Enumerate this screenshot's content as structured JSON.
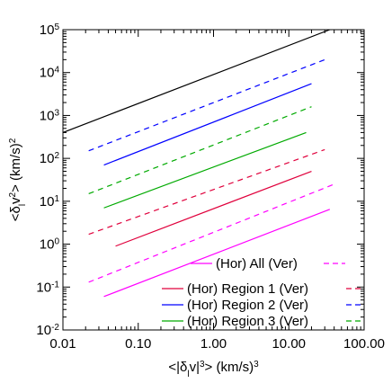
{
  "chart_data": {
    "type": "line",
    "x_scale": "log",
    "y_scale": "log",
    "xlim": [
      0.01,
      100
    ],
    "ylim": [
      0.01,
      100000
    ],
    "x_ticks": [
      {
        "value": 0.01,
        "label": "0.01"
      },
      {
        "value": 0.1,
        "label": "0.10"
      },
      {
        "value": 1,
        "label": "1.00"
      },
      {
        "value": 10,
        "label": "10.00"
      },
      {
        "value": 100,
        "label": "100.00"
      }
    ],
    "y_ticks": [
      {
        "value": 0.01,
        "mantissa": "10",
        "exponent": "-2"
      },
      {
        "value": 0.1,
        "mantissa": "10",
        "exponent": "-1"
      },
      {
        "value": 1,
        "mantissa": "10",
        "exponent": "0"
      },
      {
        "value": 10,
        "mantissa": "10",
        "exponent": "1"
      },
      {
        "value": 100,
        "mantissa": "10",
        "exponent": "2"
      },
      {
        "value": 1000,
        "mantissa": "10",
        "exponent": "3"
      },
      {
        "value": 10000,
        "mantissa": "10",
        "exponent": "4"
      },
      {
        "value": 100000,
        "mantissa": "10",
        "exponent": "5"
      }
    ],
    "xlabel": {
      "pre": "<|δ",
      "sub": "l",
      "mid": "v|",
      "sup": "3",
      "post": "> (km/s)",
      "unit_sup": "3"
    },
    "ylabel": {
      "pre": "<δ",
      "sub": "l",
      "mid": "v",
      "sup": "2",
      "post": "> (km/s)",
      "unit_sup": "2"
    },
    "series": [
      {
        "color": "#000000",
        "dash": false,
        "x": [
          0.01,
          35
        ],
        "y": [
          400,
          100000
        ]
      },
      {
        "color": "#0000ff",
        "dash": true,
        "x": [
          0.022,
          30
        ],
        "y": [
          150,
          20000
        ]
      },
      {
        "color": "#0000ff",
        "dash": false,
        "x": [
          0.035,
          20
        ],
        "y": [
          70,
          5500
        ]
      },
      {
        "color": "#00aa00",
        "dash": true,
        "x": [
          0.022,
          20
        ],
        "y": [
          15,
          1600
        ]
      },
      {
        "color": "#00aa00",
        "dash": false,
        "x": [
          0.035,
          17
        ],
        "y": [
          7,
          400
        ]
      },
      {
        "color": "#e0003c",
        "dash": true,
        "x": [
          0.022,
          30
        ],
        "y": [
          1.7,
          160
        ]
      },
      {
        "color": "#e0003c",
        "dash": false,
        "x": [
          0.05,
          20
        ],
        "y": [
          0.9,
          50
        ]
      },
      {
        "color": "#ff00ff",
        "dash": true,
        "x": [
          0.022,
          40
        ],
        "y": [
          0.13,
          25
        ]
      },
      {
        "color": "#ff00ff",
        "dash": false,
        "x": [
          0.035,
          35
        ],
        "y": [
          0.06,
          6.5
        ]
      }
    ],
    "legend": {
      "placement": "bottom-right",
      "entries": [
        {
          "left": "(Hor)",
          "name": "All",
          "right": "(Ver)",
          "color": "#ff00ff"
        },
        {
          "left": "(Hor)",
          "name": "Region 1",
          "right": "(Ver)",
          "color": "#e0003c"
        },
        {
          "left": "(Hor)",
          "name": "Region 2",
          "right": "(Ver)",
          "color": "#0000ff"
        },
        {
          "left": "(Hor)",
          "name": "Region 3",
          "right": "(Ver)",
          "color": "#00aa00"
        }
      ]
    }
  }
}
